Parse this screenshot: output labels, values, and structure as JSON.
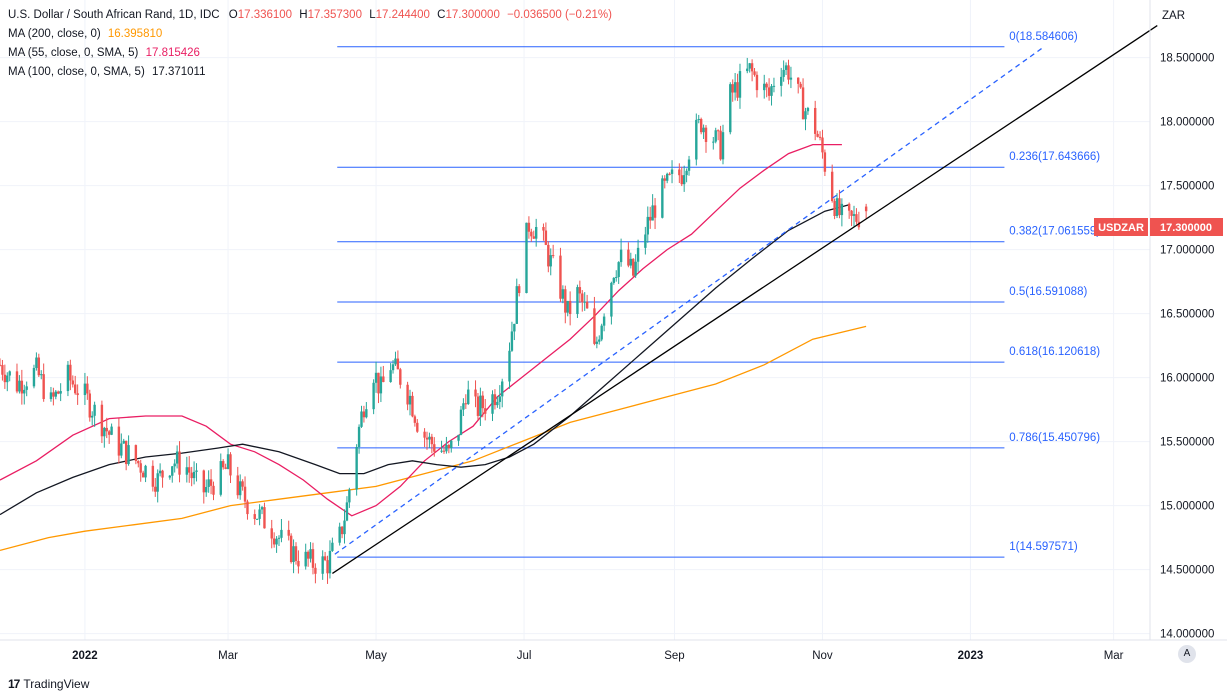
{
  "legend": {
    "title": "U.S. Dollar / South African Rand, 1D, IDC",
    "o_label": "O",
    "o_value": "17.336100",
    "h_label": "H",
    "h_value": "17.357300",
    "l_label": "L",
    "l_value": "17.244400",
    "c_label": "C",
    "c_value": "17.300000",
    "change": "−0.036500 (−0.21%)",
    "ma200_label": "MA (200, close, 0)",
    "ma200_value": "16.395810",
    "ma55_label": "MA (55, close, 0, SMA, 5)",
    "ma55_value": "17.815426",
    "ma100_label": "MA (100, close, 0, SMA, 5)",
    "ma100_value": "17.371011"
  },
  "colors": {
    "up": "#26a69a",
    "down": "#ef5350",
    "fib": "#2962ff",
    "ma200": "#ff9800",
    "ma55": "#e91e63",
    "ma100": "#131722",
    "trend": "#000000",
    "change": "#ef5350"
  },
  "currency_label": "ZAR",
  "price_tag": {
    "symbol": "USDZAR",
    "value": "17.300000"
  },
  "brand": {
    "icon": "17",
    "name": "TradingView"
  },
  "auto_label": "A",
  "chart_data": {
    "type": "candlestick",
    "title": "U.S. Dollar / South African Rand, 1D, IDC",
    "ylabel": "ZAR",
    "ylim": [
      13.95,
      18.95
    ],
    "x_range_days": [
      -35,
      439
    ],
    "y_ticks": [
      "14.000000",
      "14.500000",
      "15.000000",
      "15.500000",
      "16.000000",
      "16.500000",
      "17.000000",
      "17.500000",
      "18.000000",
      "18.500000"
    ],
    "y_tick_values": [
      14.0,
      14.5,
      15.0,
      15.5,
      16.0,
      16.5,
      17.0,
      17.5,
      18.0,
      18.5
    ],
    "x_ticks": [
      {
        "label": "2022",
        "day": 0
      },
      {
        "label": "Mar",
        "day": 59
      },
      {
        "label": "May",
        "day": 120
      },
      {
        "label": "Jul",
        "day": 181
      },
      {
        "label": "Sep",
        "day": 243
      },
      {
        "label": "Nov",
        "day": 304
      },
      {
        "label": "2023",
        "day": 365
      },
      {
        "label": "Mar",
        "day": 424
      }
    ],
    "price_path": [
      [
        -35,
        16.1
      ],
      [
        -28,
        15.95
      ],
      [
        -20,
        16.05
      ],
      [
        -14,
        15.8
      ],
      [
        -7,
        16.0
      ],
      [
        0,
        15.85
      ],
      [
        7,
        15.65
      ],
      [
        12,
        15.5
      ],
      [
        18,
        15.4
      ],
      [
        24,
        15.3
      ],
      [
        30,
        15.2
      ],
      [
        36,
        15.35
      ],
      [
        42,
        15.3
      ],
      [
        48,
        15.1
      ],
      [
        54,
        15.2
      ],
      [
        59,
        15.3
      ],
      [
        64,
        15.1
      ],
      [
        70,
        14.95
      ],
      [
        76,
        14.85
      ],
      [
        82,
        14.7
      ],
      [
        88,
        14.6
      ],
      [
        94,
        14.55
      ],
      [
        100,
        14.55
      ],
      [
        105,
        14.75
      ],
      [
        108,
        15.0
      ],
      [
        111,
        15.4
      ],
      [
        115,
        15.8
      ],
      [
        119,
        16.05
      ],
      [
        122,
        15.9
      ],
      [
        126,
        16.1
      ],
      [
        130,
        16.0
      ],
      [
        134,
        15.85
      ],
      [
        138,
        15.6
      ],
      [
        142,
        15.5
      ],
      [
        146,
        15.45
      ],
      [
        150,
        15.4
      ],
      [
        154,
        15.6
      ],
      [
        157,
        15.9
      ],
      [
        161,
        15.75
      ],
      [
        166,
        15.8
      ],
      [
        170,
        15.9
      ],
      [
        174,
        16.15
      ],
      [
        177,
        16.5
      ],
      [
        180,
        16.9
      ],
      [
        183,
        17.2
      ],
      [
        187,
        17.15
      ],
      [
        191,
        16.95
      ],
      [
        195,
        16.75
      ],
      [
        199,
        16.5
      ],
      [
        203,
        16.65
      ],
      [
        207,
        16.5
      ],
      [
        210,
        16.2
      ],
      [
        214,
        16.55
      ],
      [
        218,
        16.85
      ],
      [
        222,
        16.95
      ],
      [
        226,
        16.8
      ],
      [
        230,
        17.1
      ],
      [
        234,
        17.3
      ],
      [
        238,
        17.45
      ],
      [
        242,
        17.55
      ],
      [
        246,
        17.6
      ],
      [
        250,
        17.85
      ],
      [
        254,
        18.0
      ],
      [
        258,
        17.9
      ],
      [
        262,
        17.8
      ],
      [
        266,
        18.2
      ],
      [
        270,
        18.3
      ],
      [
        274,
        18.4
      ],
      [
        278,
        18.3
      ],
      [
        282,
        18.2
      ],
      [
        286,
        18.45
      ],
      [
        290,
        18.4
      ],
      [
        294,
        18.2
      ],
      [
        298,
        18.05
      ],
      [
        301,
        17.95
      ],
      [
        304,
        17.75
      ],
      [
        307,
        17.5
      ],
      [
        310,
        17.3
      ],
      [
        314,
        17.2
      ],
      [
        318,
        17.25
      ],
      [
        322,
        17.3
      ]
    ],
    "ma200": [
      [
        -35,
        14.65
      ],
      [
        -15,
        14.75
      ],
      [
        0,
        14.8
      ],
      [
        20,
        14.85
      ],
      [
        40,
        14.9
      ],
      [
        60,
        15.0
      ],
      [
        80,
        15.05
      ],
      [
        100,
        15.1
      ],
      [
        120,
        15.15
      ],
      [
        140,
        15.25
      ],
      [
        160,
        15.35
      ],
      [
        180,
        15.5
      ],
      [
        200,
        15.65
      ],
      [
        220,
        15.75
      ],
      [
        240,
        15.85
      ],
      [
        260,
        15.95
      ],
      [
        280,
        16.1
      ],
      [
        300,
        16.3
      ],
      [
        322,
        16.4
      ]
    ],
    "ma55": [
      [
        -35,
        15.2
      ],
      [
        -20,
        15.35
      ],
      [
        -5,
        15.55
      ],
      [
        10,
        15.68
      ],
      [
        25,
        15.7
      ],
      [
        40,
        15.7
      ],
      [
        50,
        15.62
      ],
      [
        60,
        15.48
      ],
      [
        70,
        15.42
      ],
      [
        80,
        15.32
      ],
      [
        90,
        15.2
      ],
      [
        100,
        15.05
      ],
      [
        110,
        14.92
      ],
      [
        120,
        15.0
      ],
      [
        130,
        15.15
      ],
      [
        140,
        15.35
      ],
      [
        150,
        15.5
      ],
      [
        160,
        15.62
      ],
      [
        170,
        15.85
      ],
      [
        180,
        16.0
      ],
      [
        190,
        16.15
      ],
      [
        200,
        16.3
      ],
      [
        210,
        16.48
      ],
      [
        220,
        16.68
      ],
      [
        230,
        16.85
      ],
      [
        240,
        17.0
      ],
      [
        250,
        17.12
      ],
      [
        260,
        17.3
      ],
      [
        270,
        17.48
      ],
      [
        280,
        17.62
      ],
      [
        290,
        17.75
      ],
      [
        300,
        17.82
      ],
      [
        312,
        17.82
      ]
    ],
    "ma100": [
      [
        -35,
        14.93
      ],
      [
        -20,
        15.1
      ],
      [
        -5,
        15.22
      ],
      [
        10,
        15.32
      ],
      [
        25,
        15.38
      ],
      [
        40,
        15.41
      ],
      [
        55,
        15.45
      ],
      [
        65,
        15.48
      ],
      [
        80,
        15.42
      ],
      [
        95,
        15.32
      ],
      [
        105,
        15.25
      ],
      [
        115,
        15.25
      ],
      [
        125,
        15.32
      ],
      [
        135,
        15.35
      ],
      [
        145,
        15.32
      ],
      [
        155,
        15.3
      ],
      [
        165,
        15.32
      ],
      [
        175,
        15.38
      ],
      [
        185,
        15.48
      ],
      [
        200,
        15.7
      ],
      [
        215,
        15.95
      ],
      [
        230,
        16.2
      ],
      [
        245,
        16.45
      ],
      [
        260,
        16.7
      ],
      [
        275,
        16.93
      ],
      [
        290,
        17.15
      ],
      [
        305,
        17.3
      ],
      [
        315,
        17.35
      ]
    ],
    "trendlines": [
      {
        "style": "solid",
        "points": [
          [
            102,
            14.47
          ],
          [
            442,
            18.75
          ]
        ]
      },
      {
        "style": "dashed",
        "points": [
          [
            103,
            14.62
          ],
          [
            395,
            18.58
          ]
        ]
      }
    ],
    "fib": {
      "day_start": 104,
      "day_end": 379,
      "label_day": 381,
      "levels": [
        {
          "label": "0(18.584606)",
          "value": 18.584606
        },
        {
          "label": "0.236(17.643666)",
          "value": 17.643666
        },
        {
          "label": "0.382(17.061559)",
          "value": 17.061559
        },
        {
          "label": "0.5(16.591088)",
          "value": 16.591088
        },
        {
          "label": "0.618(16.120618)",
          "value": 16.120618
        },
        {
          "label": "0.786(15.450796)",
          "value": 15.450796
        },
        {
          "label": "1(14.597571)",
          "value": 14.597571
        }
      ]
    },
    "last": {
      "open": 17.3361,
      "high": 17.3573,
      "low": 17.2444,
      "close": 17.3
    }
  }
}
